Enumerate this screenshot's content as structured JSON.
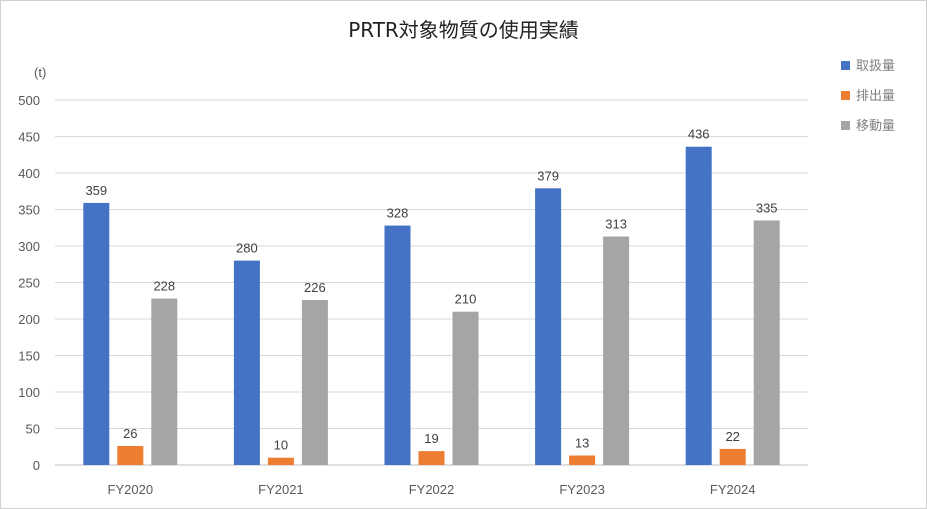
{
  "chart_data": {
    "type": "bar",
    "title": "PRTR対象物質の使用実績",
    "ylabel": "(t)",
    "ylim": [
      0,
      500
    ],
    "yticks": [
      0,
      50,
      100,
      150,
      200,
      250,
      300,
      350,
      400,
      450,
      500
    ],
    "grid": true,
    "legend_position": "right",
    "categories": [
      "FY2020",
      "FY2021",
      "FY2022",
      "FY2023",
      "FY2024"
    ],
    "series": [
      {
        "name": "取扱量",
        "color": "#4472C4",
        "values": [
          359,
          280,
          328,
          379,
          436
        ]
      },
      {
        "name": "排出量",
        "color": "#ED7D31",
        "values": [
          26,
          10,
          19,
          13,
          22
        ]
      },
      {
        "name": "移動量",
        "color": "#A5A5A5",
        "values": [
          228,
          226,
          210,
          313,
          335
        ]
      }
    ]
  }
}
